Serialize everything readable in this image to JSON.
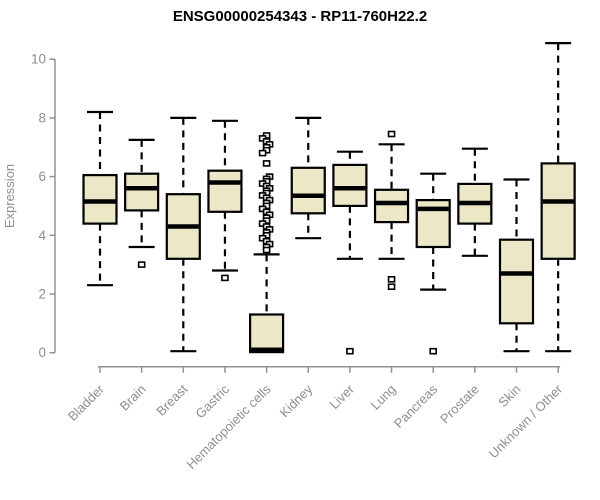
{
  "chart_data": {
    "type": "boxplot",
    "title": "ENSG00000254343 - RP11-760H22.2",
    "ylabel": "Expression",
    "xlabel": "",
    "ylim": [
      0,
      10.6
    ],
    "yticks": [
      0,
      2,
      4,
      6,
      8,
      10
    ],
    "grid": false,
    "legend": "none",
    "colors": {
      "box_fill": "#ECE7C6",
      "box_stroke": "#000000",
      "axis": "#8f9398",
      "tick_text": "#8b8f93",
      "title_text": "#000000",
      "outlier_fill": "#ffffff"
    },
    "categories": [
      "Bladder",
      "Brain",
      "Breast",
      "Gastric",
      "Hematopoietic cells",
      "Kidney",
      "Liver",
      "Lung",
      "Pancreas",
      "Prostate",
      "Skin",
      "Unknown / Other"
    ],
    "series": [
      {
        "category": "Bladder",
        "whisker_low": 2.3,
        "q1": 4.4,
        "median": 5.15,
        "q3": 6.05,
        "whisker_high": 8.2,
        "outliers": []
      },
      {
        "category": "Brain",
        "whisker_low": 3.6,
        "q1": 4.85,
        "median": 5.6,
        "q3": 6.1,
        "whisker_high": 7.25,
        "outliers": [
          3.0
        ]
      },
      {
        "category": "Breast",
        "whisker_low": 0.05,
        "q1": 3.2,
        "median": 4.3,
        "q3": 5.4,
        "whisker_high": 8.0,
        "outliers": []
      },
      {
        "category": "Gastric",
        "whisker_low": 2.8,
        "q1": 4.8,
        "median": 5.8,
        "q3": 6.2,
        "whisker_high": 7.9,
        "outliers": [
          2.55
        ]
      },
      {
        "category": "Hematopoietic cells",
        "whisker_low": 0.02,
        "q1": 0.02,
        "median": 0.1,
        "q3": 1.3,
        "whisker_high": 3.35,
        "outliers": [
          7.4,
          7.3,
          7.2,
          7.1,
          7.0,
          6.9,
          6.8,
          6.45,
          6.0,
          5.92,
          5.84,
          5.76,
          5.68,
          5.6,
          5.52,
          5.44,
          5.36,
          5.28,
          5.2,
          5.1,
          5.0,
          4.9,
          4.8,
          4.7,
          4.6,
          4.5,
          4.4,
          4.3,
          4.2,
          4.1,
          4.0,
          3.9,
          3.8,
          3.7,
          3.6,
          3.5
        ]
      },
      {
        "category": "Kidney",
        "whisker_low": 3.9,
        "q1": 4.75,
        "median": 5.35,
        "q3": 6.3,
        "whisker_high": 8.0,
        "outliers": []
      },
      {
        "category": "Liver",
        "whisker_low": 3.2,
        "q1": 5.0,
        "median": 5.6,
        "q3": 6.4,
        "whisker_high": 6.85,
        "outliers": [
          0.05
        ]
      },
      {
        "category": "Lung",
        "whisker_low": 3.2,
        "q1": 4.45,
        "median": 5.1,
        "q3": 5.55,
        "whisker_high": 7.1,
        "outliers": [
          7.45,
          2.5,
          2.25
        ]
      },
      {
        "category": "Pancreas",
        "whisker_low": 2.15,
        "q1": 3.6,
        "median": 4.9,
        "q3": 5.2,
        "whisker_high": 6.1,
        "outliers": [
          0.05
        ]
      },
      {
        "category": "Prostate",
        "whisker_low": 3.3,
        "q1": 4.4,
        "median": 5.1,
        "q3": 5.75,
        "whisker_high": 6.95,
        "outliers": []
      },
      {
        "category": "Skin",
        "whisker_low": 0.05,
        "q1": 1.0,
        "median": 2.7,
        "q3": 3.85,
        "whisker_high": 5.9,
        "outliers": []
      },
      {
        "category": "Unknown / Other",
        "whisker_low": 0.05,
        "q1": 3.2,
        "median": 5.15,
        "q3": 6.45,
        "whisker_high": 10.55,
        "outliers": []
      }
    ]
  }
}
